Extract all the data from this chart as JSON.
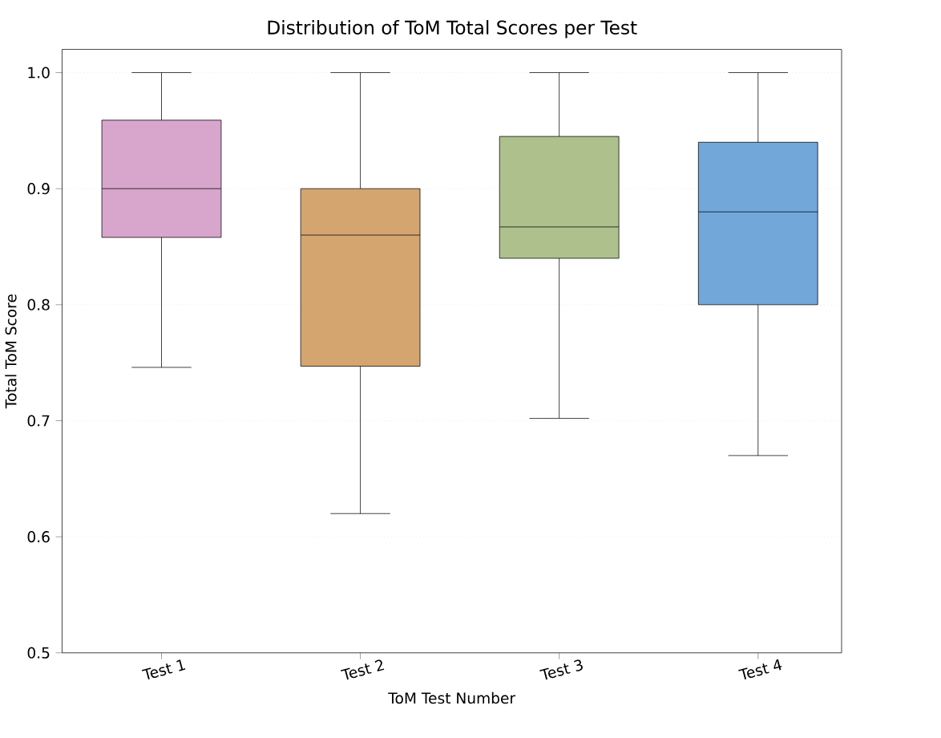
{
  "chart_data": {
    "type": "box",
    "title": "Distribution of ToM Total Scores per Test",
    "xlabel": "ToM Test Number",
    "ylabel": "Total ToM Score",
    "categories": [
      "Test 1",
      "Test 2",
      "Test 3",
      "Test 4"
    ],
    "boxes": [
      {
        "low": 0.746,
        "q1": 0.858,
        "median": 0.9,
        "q3": 0.959,
        "high": 1.0
      },
      {
        "low": 0.62,
        "q1": 0.747,
        "median": 0.86,
        "q3": 0.9,
        "high": 1.0
      },
      {
        "low": 0.702,
        "q1": 0.84,
        "median": 0.867,
        "q3": 0.945,
        "high": 1.0
      },
      {
        "low": 0.67,
        "q1": 0.8,
        "median": 0.88,
        "q3": 0.94,
        "high": 1.0
      }
    ],
    "colors": [
      "#d8a5cc",
      "#d4a56f",
      "#aec18d",
      "#72a7da"
    ],
    "ylim": [
      0.5,
      1.02
    ],
    "yticks": [
      0.5,
      0.6,
      0.7,
      0.8,
      0.9,
      {
        "value": 1.0,
        "label": "1.0"
      }
    ],
    "grid": "y"
  }
}
